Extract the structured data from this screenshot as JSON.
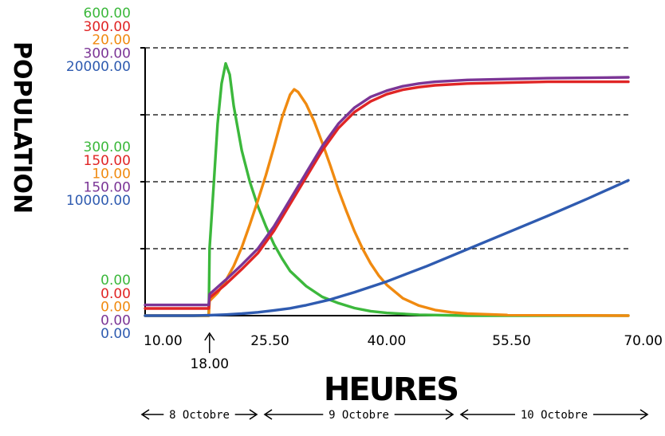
{
  "chart_data": {
    "type": "line",
    "xlabel": "HEURES",
    "ylabel": "POPULATION",
    "xlim": [
      10,
      70
    ],
    "x_ticks": [
      "10.00",
      "25.50",
      "40.00",
      "55.50",
      "70.00"
    ],
    "x_marker": {
      "value": 18,
      "label": "18.00"
    },
    "y_axis_labels": [
      {
        "series": "green",
        "color": "#3cb83c",
        "top": "600.00",
        "mid": "300.00",
        "bottom": "0.00"
      },
      {
        "series": "red",
        "color": "#e02525",
        "top": "300.00",
        "mid": "150.00",
        "bottom": "0.00"
      },
      {
        "series": "orange",
        "color": "#f08a10",
        "top": "20.00",
        "mid": "10.00",
        "bottom": "0.00"
      },
      {
        "series": "purple",
        "color": "#7b3596",
        "top": "300.00",
        "mid": "150.00",
        "bottom": "0.00"
      },
      {
        "series": "blue",
        "color": "#2f5bb0",
        "top": "20000.00",
        "mid": "10000.00",
        "bottom": "0.00"
      }
    ],
    "grid": "dashed horizontal",
    "series": [
      {
        "color": "#3cb83c",
        "ymax": 600,
        "x": [
          10,
          16,
          17.9,
          18,
          18.5,
          19,
          19.5,
          20,
          20.5,
          21,
          22,
          23,
          24,
          25,
          26,
          27,
          28,
          30,
          32,
          34,
          36,
          38,
          40,
          44,
          50,
          70
        ],
        "y": [
          0,
          0,
          0,
          150,
          290,
          430,
          520,
          565,
          540,
          470,
          370,
          300,
          245,
          200,
          160,
          128,
          100,
          66,
          42,
          28,
          17,
          10,
          6,
          2,
          0,
          0
        ]
      },
      {
        "color": "#f08a10",
        "ymax": 20,
        "x": [
          10,
          17.9,
          18,
          19,
          20,
          21,
          22,
          23,
          24,
          25,
          26,
          27,
          28,
          28.5,
          29,
          30,
          31,
          32,
          33,
          34,
          35,
          36,
          37,
          38,
          39,
          40,
          42,
          44,
          46,
          48,
          50,
          55,
          70
        ],
        "y": [
          0,
          0,
          1.1,
          1.7,
          2.6,
          3.7,
          5.1,
          6.8,
          8.6,
          10.5,
          12.6,
          14.8,
          16.5,
          16.9,
          16.7,
          15.8,
          14.5,
          12.9,
          11.2,
          9.4,
          7.8,
          6.3,
          5.0,
          3.9,
          3.0,
          2.3,
          1.3,
          0.75,
          0.42,
          0.25,
          0.15,
          0.05,
          0
        ]
      },
      {
        "color": "#e02525",
        "ymax": 300,
        "x": [
          10,
          17.9,
          18,
          20,
          22,
          24,
          26,
          28,
          30,
          32,
          34,
          36,
          38,
          40,
          42,
          44,
          46,
          50,
          55,
          60,
          70
        ],
        "y": [
          8,
          8,
          20,
          35,
          52,
          70,
          95,
          125,
          155,
          185,
          210,
          228,
          240,
          248,
          253,
          256,
          258,
          260,
          261,
          262,
          262
        ]
      },
      {
        "color": "#7b3596",
        "ymax": 300,
        "x": [
          10,
          17.9,
          18,
          20,
          22,
          24,
          26,
          28,
          30,
          32,
          34,
          36,
          38,
          40,
          42,
          44,
          46,
          50,
          55,
          60,
          70
        ],
        "y": [
          12,
          12,
          24,
          40,
          57,
          75,
          100,
          130,
          160,
          190,
          215,
          233,
          245,
          252,
          257,
          260,
          262,
          264,
          265,
          266,
          267
        ]
      },
      {
        "color": "#2f5bb0",
        "ymax": 20000,
        "x": [
          10,
          16,
          18,
          20,
          22,
          24,
          26,
          28,
          30,
          33,
          36,
          40,
          45,
          50,
          55,
          60,
          65,
          70
        ],
        "y": [
          0,
          0,
          30,
          80,
          150,
          250,
          390,
          550,
          780,
          1200,
          1750,
          2550,
          3700,
          4950,
          6200,
          7450,
          8750,
          10100
        ]
      }
    ],
    "annotations": {
      "days": [
        {
          "label": "8 Octobre"
        },
        {
          "label": "9 Octobre"
        },
        {
          "label": "10 Octobre"
        }
      ]
    }
  }
}
